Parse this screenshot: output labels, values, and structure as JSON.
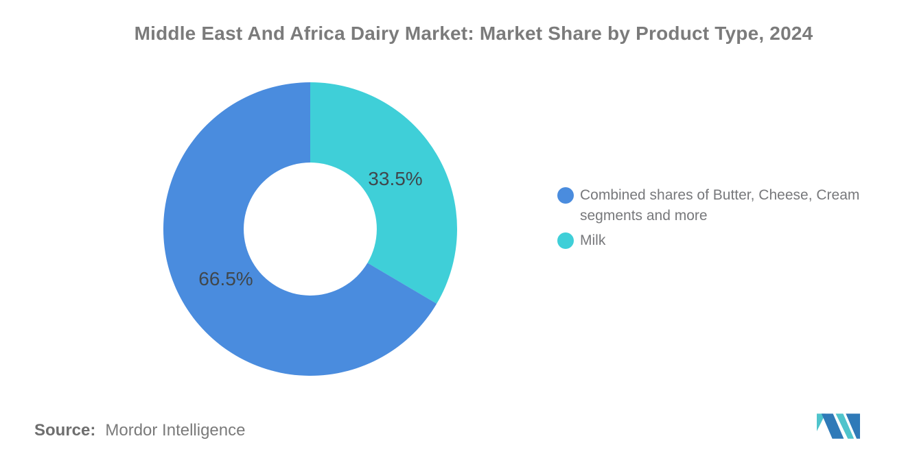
{
  "title": "Middle East And Africa Dairy Market: Market Share by Product Type, 2024",
  "chart_data": {
    "type": "pie",
    "subtype": "donut",
    "title": "Middle East And Africa Dairy Market: Market Share by Product Type, 2024",
    "categories": [
      "Milk",
      "Combined shares of Butter, Cheese, Cream segments and more"
    ],
    "values": [
      33.5,
      66.5
    ],
    "labels": [
      "33.5%",
      "66.5%"
    ],
    "colors": [
      "#3FCFD8",
      "#4A8CDE"
    ],
    "start_angle_deg": 0,
    "direction": "clockwise",
    "inner_radius_ratio": 0.453,
    "legend_position": "right",
    "grid": false
  },
  "legend": {
    "items": [
      {
        "label": "Combined shares of Butter, Cheese, Cream segments and more",
        "color": "#4A8CDE"
      },
      {
        "label": "Milk",
        "color": "#3FCFD8"
      }
    ]
  },
  "source": {
    "label": "Source:",
    "value": "Mordor Intelligence"
  },
  "logo": {
    "name": "mordor-intelligence-logo",
    "blue": "#2F7AB8",
    "teal": "#4FC4CC"
  }
}
